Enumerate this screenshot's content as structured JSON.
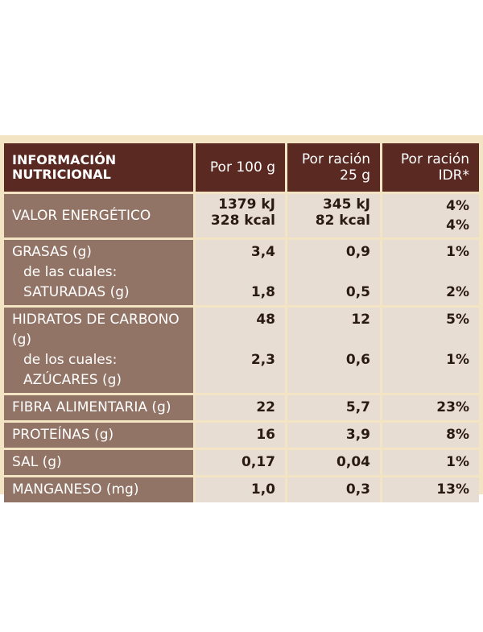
{
  "header": {
    "label_line1": "INFORMACIÓN",
    "label_line2": "NUTRICIONAL",
    "col1": "Por 100 g",
    "col2_line1": "Por ración",
    "col2_line2": "25 g",
    "col3_line1": "Por ración",
    "col3_line2": "IDR*"
  },
  "rows": {
    "energia": {
      "label": "VALOR ENERGÉTICO",
      "v1a": "1379 kJ",
      "v1b": "328 kcal",
      "v2a": "345 kJ",
      "v2b": "82 kcal",
      "v3a": "4%",
      "v3b": "4%"
    },
    "grasas": {
      "label": "GRASAS (g)",
      "sub1": "de las cuales:",
      "sub2": "SATURADAS (g)",
      "v1": "3,4",
      "v2": "0,9",
      "v3": "1%",
      "s1": "1,8",
      "s2": "0,5",
      "s3": "2%"
    },
    "hidratos": {
      "label": "HIDRATOS DE CARBONO (g)",
      "sub1": "de los cuales:",
      "sub2": "AZÚCARES (g)",
      "v1": "48",
      "v2": "12",
      "v3": "5%",
      "s1": "2,3",
      "s2": "0,6",
      "s3": "1%"
    },
    "fibra": {
      "label": "FIBRA ALIMENTARIA (g)",
      "v1": "22",
      "v2": "5,7",
      "v3": "23%"
    },
    "proteinas": {
      "label": "PROTEÍNAS (g)",
      "v1": "16",
      "v2": "3,9",
      "v3": "8%"
    },
    "sal": {
      "label": "SAL (g)",
      "v1": "0,17",
      "v2": "0,04",
      "v3": "1%"
    },
    "manganeso": {
      "label": "MANGANESO (mg)",
      "v1": "1,0",
      "v2": "0,3",
      "v3": "13%"
    }
  }
}
